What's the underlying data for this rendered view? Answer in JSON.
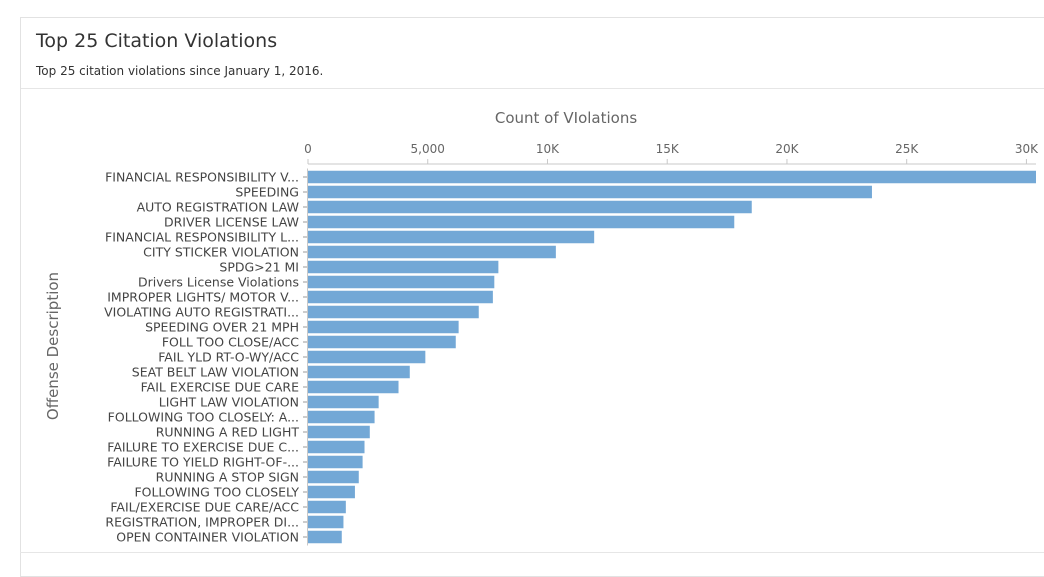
{
  "card": {
    "title": "Top 25 Citation Violations",
    "subtitle": "Top 25 citation violations since January 1, 2016."
  },
  "chart_data": {
    "type": "bar",
    "orientation": "horizontal",
    "title": "",
    "xlabel": "Count of VIolations",
    "ylabel": "Offense Description",
    "xlim": [
      0,
      30400
    ],
    "x_ticks": [
      0,
      5000,
      10000,
      15000,
      20000,
      25000,
      30000
    ],
    "x_tick_labels": [
      "0",
      "5,000",
      "10K",
      "15K",
      "20K",
      "25K",
      "30K"
    ],
    "bar_color": "#73a8d6",
    "grid": false,
    "categories": [
      "FINANCIAL RESPONSIBILITY V...",
      "SPEEDING",
      "AUTO REGISTRATION LAW",
      "DRIVER LICENSE LAW",
      "FINANCIAL RESPONSIBILITY L...",
      "CITY STICKER VIOLATION",
      "SPDG>21 MI",
      "Drivers License Violations",
      "IMPROPER LIGHTS/ MOTOR V...",
      "VIOLATING AUTO REGISTRATI...",
      "SPEEDING OVER 21 MPH",
      "FOLL TOO CLOSE/ACC",
      "FAIL YLD RT-O-WY/ACC",
      "SEAT BELT LAW VIOLATION",
      "FAIL EXERCISE DUE CARE",
      "LIGHT LAW VIOLATION",
      "FOLLOWING TOO CLOSELY: A...",
      "RUNNING A RED LIGHT",
      "FAILURE TO EXERCISE DUE C...",
      "FAILURE TO YIELD RIGHT-OF-...",
      "RUNNING A STOP SIGN",
      "FOLLOWING TOO CLOSELY",
      "FAIL/EXERCISE DUE CARE/ACC",
      "REGISTRATION, IMPROPER DI...",
      "OPEN CONTAINER VIOLATION"
    ],
    "values": [
      30400,
      23550,
      18530,
      17800,
      11950,
      10350,
      7950,
      7780,
      7720,
      7130,
      6290,
      6170,
      4900,
      4250,
      3780,
      2950,
      2780,
      2580,
      2360,
      2280,
      2120,
      1960,
      1580,
      1480,
      1410
    ]
  }
}
